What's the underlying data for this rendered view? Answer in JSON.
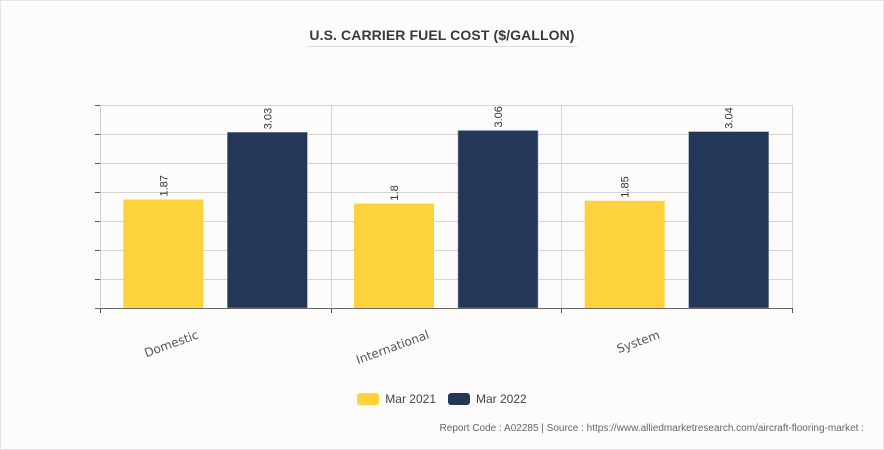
{
  "chart_data": {
    "type": "bar",
    "title": "U.S. CARRIER FUEL COST ($/GALLON)",
    "xlabel": "",
    "ylabel": "",
    "categories": [
      "Domestic",
      "International",
      "System"
    ],
    "series": [
      {
        "name": "Mar 2021",
        "color": "#fdd23a",
        "values": [
          1.87,
          1.8,
          1.85
        ],
        "labels": [
          "1.87",
          "1.8",
          "1.85"
        ]
      },
      {
        "name": "Mar 2022",
        "color": "#253758",
        "values": [
          3.03,
          3.06,
          3.04
        ],
        "labels": [
          "3.03",
          "3.06",
          "3.04"
        ]
      }
    ],
    "ylim": [
      0,
      3.5
    ],
    "ytick_step": 0.5,
    "ytick_labels_shown": false,
    "grid": true,
    "legend_position": "bottom-center"
  },
  "footer": {
    "text": "Report Code : A02285  |  Source : https://www.alliedmarketresearch.com/aircraft-flooring-market :"
  }
}
